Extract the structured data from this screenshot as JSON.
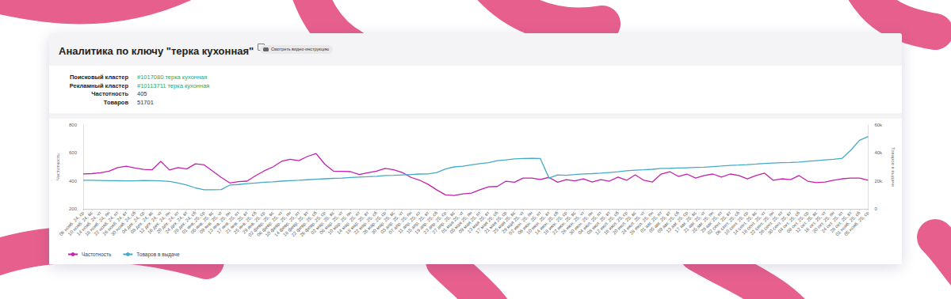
{
  "page": {
    "title": "Аналитика по ключу \"терка кухонная\"",
    "button": "Смотреть видео-инструкцию",
    "info": [
      {
        "label": "Поисковый кластер",
        "value": "#1017080 терка кухонная",
        "link": true
      },
      {
        "label": "Рекламный кластер",
        "value": "#10113711 терка кухонная",
        "link": true
      },
      {
        "label": "Частотность",
        "value": "405",
        "link": false
      },
      {
        "label": "Товаров",
        "value": "51701",
        "link": false
      }
    ]
  },
  "chart_data": {
    "type": "line",
    "ylabel": "Частотность",
    "y2label": "Товаров в выдаче",
    "categories": [
      "06 нояб. 24, ср",
      "10 нояб. 24, вс",
      "14 нояб. 24, чт",
      "18 нояб. 24, пн",
      "22 нояб. 24, пт",
      "26 нояб. 24, вт",
      "30 нояб. 24, сб",
      "04 дек. 24, ср",
      "08 дек. 24, вс",
      "12 дек. 24, чт",
      "16 дек. 24, пн",
      "20 дек. 24, пт",
      "24 дек. 24, вт",
      "28 дек. 24, сб",
      "01 янв. 25, ср",
      "05 янв. 25, вс",
      "09 янв. 25, чт",
      "13 янв. 25, пн",
      "17 янв. 25, пт",
      "21 янв. 25, вт",
      "25 янв. 25, сб",
      "29 янв. 25, ср",
      "02 февр. 25, вс",
      "06 февр. 25, чт",
      "10 февр. 25, пн",
      "14 февр. 25, пт",
      "18 февр. 25, вт",
      "22 февр. 25, сб",
      "26 февр. 25, ср",
      "02 мар. 25, вс",
      "06 мар. 25, чт",
      "10 мар. 25, пн",
      "14 мар. 25, пт",
      "18 мар. 25, вт",
      "22 мар. 25, сб",
      "26 мар. 25, ср",
      "30 мар. 25, вс",
      "03 апр. 25, чт",
      "07 апр. 25, пн",
      "11 апр. 25, пт",
      "15 апр. 25, вт",
      "19 апр. 25, сб",
      "23 апр. 25, ср",
      "27 апр. 25, вс",
      "01 мая 25, чт",
      "05 мая 25, пн",
      "09 мая 25, пт",
      "13 мая 25, вт",
      "17 мая 25, сб",
      "21 мая 25, ср",
      "25 мая 25, вс",
      "29 мая 25, чт",
      "02 июн. 25, пн",
      "06 июн. 25, пт",
      "10 июн. 25, вт",
      "14 июн. 25, сб",
      "18 июн. 25, ср",
      "22 июн. 25, вс",
      "26 июн. 25, чт",
      "30 июн. 25, пн",
      "04 июл. 25, пт",
      "08 июл. 25, вт",
      "12 июл. 25, сб",
      "16 июл. 25, ср",
      "20 июл. 25, вс",
      "24 июл. 25, чт",
      "28 июл. 25, пн",
      "01 авг. 25, пт",
      "05 авг. 25, вт",
      "09 авг. 25, сб",
      "13 авг. 25, ср",
      "17 авг. 25, вс",
      "21 авг. 25, чт",
      "25 авг. 25, пн",
      "29 авг. 25, пт",
      "02 сент. 25, вт",
      "06 сент. 25, сб",
      "10 сент. 25, ср",
      "14 сент. 25, вс",
      "18 сент. 25, чт",
      "22 сент. 25, пн",
      "26 сент. 25, пт",
      "30 сент. 25, вт",
      "04 окт. 25, сб",
      "08 окт. 25, ср",
      "12 окт. 25, вс",
      "16 окт. 25, чт",
      "20 окт. 25, пн",
      "24 окт. 25, пт",
      "28 окт. 25, вт",
      "01 нояб. 25, сб",
      "05 нояб. 25, ср"
    ],
    "series": [
      {
        "name": "Частотность",
        "color": "#c41fae",
        "axis": "y",
        "values": [
          450,
          452,
          458,
          470,
          495,
          505,
          492,
          482,
          480,
          540,
          478,
          495,
          485,
          522,
          515,
          470,
          425,
          385,
          395,
          398,
          438,
          472,
          500,
          540,
          555,
          545,
          575,
          596,
          520,
          470,
          468,
          466,
          445,
          458,
          470,
          489,
          480,
          460,
          425,
          405,
          375,
          335,
          300,
          296,
          307,
          313,
          336,
          358,
          360,
          398,
          390,
          420,
          420,
          410,
          425,
          390,
          409,
          400,
          415,
          392,
          409,
          398,
          427,
          404,
          443,
          404,
          392,
          449,
          466,
          432,
          449,
          420,
          438,
          449,
          427,
          449,
          438,
          415,
          438,
          455,
          404,
          415,
          409,
          438,
          398,
          387,
          392,
          404,
          415,
          420,
          420,
          405
        ]
      },
      {
        "name": "Товаров в выдаче",
        "color": "#45a9c9",
        "axis": "y2",
        "values": [
          20400,
          20400,
          20300,
          20200,
          20100,
          20000,
          20000,
          20300,
          20200,
          20000,
          19600,
          18500,
          17000,
          15000,
          13600,
          13600,
          13800,
          17000,
          17400,
          18000,
          18500,
          19000,
          19300,
          19800,
          20200,
          20400,
          20800,
          21200,
          21500,
          21800,
          22000,
          22400,
          22700,
          23000,
          23300,
          23800,
          24000,
          24300,
          24600,
          24900,
          25000,
          26000,
          28500,
          30000,
          30500,
          31500,
          32300,
          33000,
          34500,
          35000,
          35700,
          36000,
          36200,
          36000,
          22000,
          24300,
          24000,
          24500,
          25000,
          25200,
          25500,
          26000,
          26500,
          27200,
          27700,
          27900,
          28300,
          28900,
          29000,
          29200,
          29400,
          29600,
          29800,
          30200,
          30600,
          31100,
          31300,
          31600,
          32000,
          32500,
          32800,
          33000,
          33200,
          33500,
          34000,
          34500,
          35000,
          35500,
          36200,
          42000,
          49000,
          51701
        ]
      }
    ],
    "ylim": [
      200,
      800
    ],
    "yticks": [
      200,
      400,
      600,
      800
    ],
    "y2lim": [
      0,
      60000
    ],
    "y2ticks": [
      0,
      {
        "value": 20000,
        "label": "20k"
      },
      {
        "value": 40000,
        "label": "40k"
      },
      {
        "value": 60000,
        "label": "60k"
      }
    ],
    "grid": false,
    "legend": "bottom-left",
    "marker": "none"
  }
}
